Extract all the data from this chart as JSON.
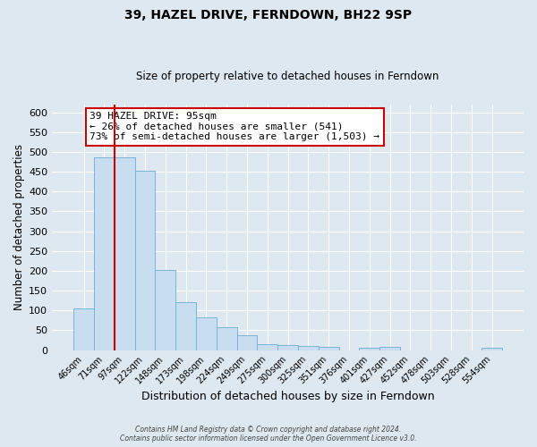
{
  "title": "39, HAZEL DRIVE, FERNDOWN, BH22 9SP",
  "subtitle": "Size of property relative to detached houses in Ferndown",
  "xlabel": "Distribution of detached houses by size in Ferndown",
  "ylabel": "Number of detached properties",
  "bar_labels": [
    "46sqm",
    "71sqm",
    "97sqm",
    "122sqm",
    "148sqm",
    "173sqm",
    "198sqm",
    "224sqm",
    "249sqm",
    "275sqm",
    "300sqm",
    "325sqm",
    "351sqm",
    "376sqm",
    "401sqm",
    "427sqm",
    "452sqm",
    "478sqm",
    "503sqm",
    "528sqm",
    "554sqm"
  ],
  "bar_values": [
    105,
    487,
    487,
    453,
    203,
    120,
    83,
    57,
    38,
    15,
    12,
    10,
    8,
    0,
    5,
    7,
    0,
    0,
    0,
    0,
    5
  ],
  "bar_color": "#c9ddf0",
  "bar_edge_color": "#7ab3d6",
  "ylim": [
    0,
    620
  ],
  "yticks": [
    0,
    50,
    100,
    150,
    200,
    250,
    300,
    350,
    400,
    450,
    500,
    550,
    600
  ],
  "annotation_title": "39 HAZEL DRIVE: 95sqm",
  "annotation_line1": "← 26% of detached houses are smaller (541)",
  "annotation_line2": "73% of semi-detached houses are larger (1,503) →",
  "annotation_box_color": "#ffffff",
  "annotation_box_edge_color": "#cc0000",
  "red_line_color": "#cc0000",
  "background_color": "#dde8f0",
  "plot_bg_color": "#dde8f0",
  "grid_color": "#ffffff",
  "footer_line1": "Contains HM Land Registry data © Crown copyright and database right 2024.",
  "footer_line2": "Contains public sector information licensed under the Open Government Licence v3.0."
}
